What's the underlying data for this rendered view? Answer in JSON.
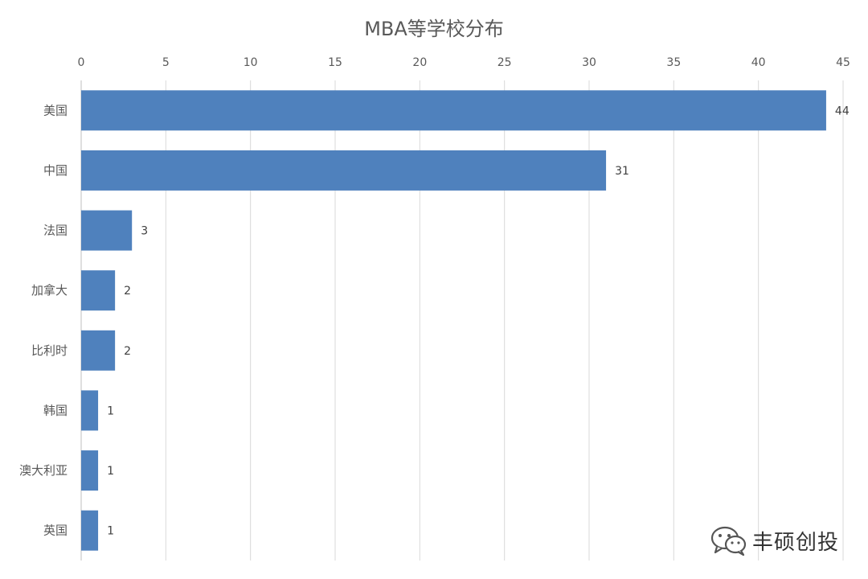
{
  "chart_data": {
    "type": "bar",
    "orientation": "horizontal",
    "title": "MBA等学校分布",
    "categories": [
      "美国",
      "中国",
      "法国",
      "加拿大",
      "比利时",
      "韩国",
      "澳大利亚",
      "英国"
    ],
    "values": [
      44,
      31,
      3,
      2,
      2,
      1,
      1,
      1
    ],
    "xlim": [
      0,
      45
    ],
    "x_ticks": [
      0,
      5,
      10,
      15,
      20,
      25,
      30,
      35,
      40,
      45
    ],
    "x_axis_position": "top",
    "grid": true,
    "data_labels": true,
    "bar_color": "#4F81BD",
    "grid_color": "#D9D9D9"
  },
  "watermark": {
    "text": "丰硕创投",
    "icon": "wechat-icon"
  }
}
